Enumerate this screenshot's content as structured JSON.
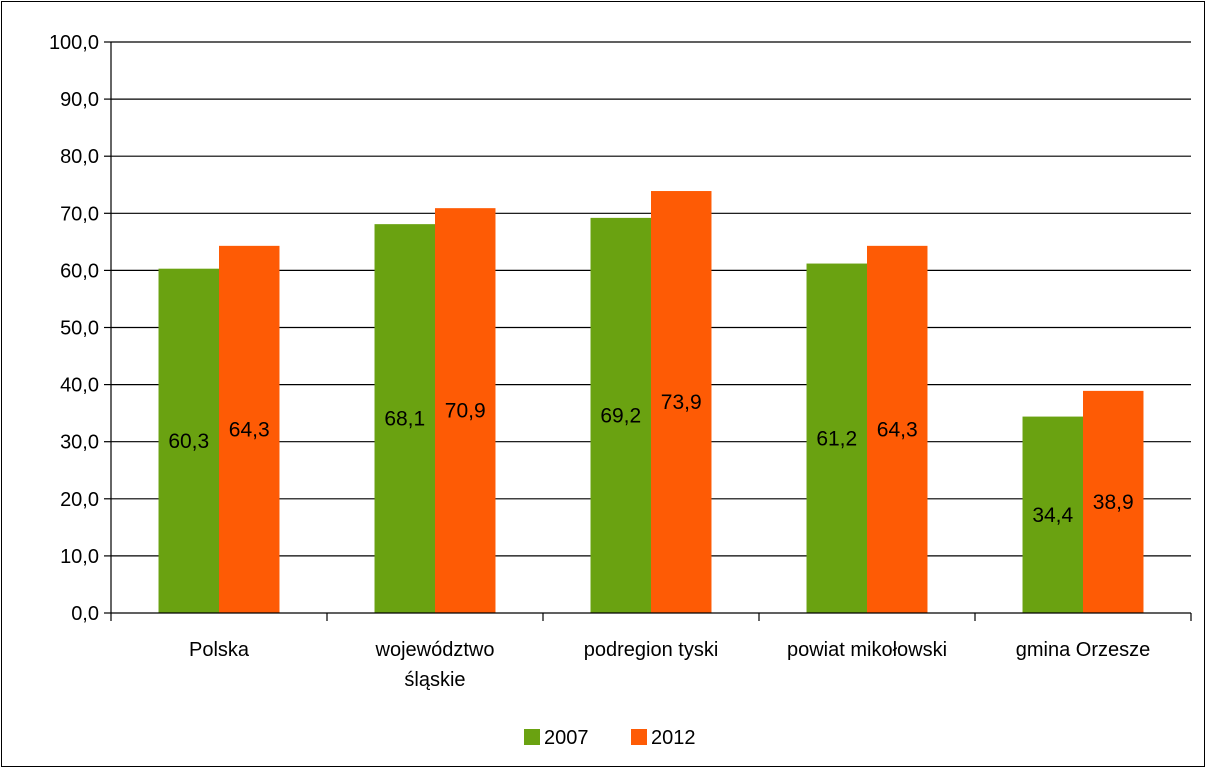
{
  "chart_data": {
    "type": "bar",
    "categories": [
      [
        "Polska"
      ],
      [
        "województwo",
        "śląskie"
      ],
      [
        "podregion tyski"
      ],
      [
        "powiat mikołowski"
      ],
      [
        "gmina Orzesze"
      ]
    ],
    "series": [
      {
        "name": "2007",
        "color": "#6aa211",
        "values": [
          60.3,
          68.1,
          69.2,
          61.2,
          34.4
        ]
      },
      {
        "name": "2012",
        "color": "#fe5b05",
        "values": [
          64.3,
          70.9,
          73.9,
          64.3,
          38.9
        ]
      }
    ],
    "data_labels": [
      [
        "60,3",
        "68,1",
        "69,2",
        "61,2",
        "34,4"
      ],
      [
        "64,3",
        "70,9",
        "73,9",
        "64,3",
        "38,9"
      ]
    ],
    "ylim": [
      0,
      100
    ],
    "yticks": [
      "0,0",
      "10,0",
      "20,0",
      "30,0",
      "40,0",
      "50,0",
      "60,0",
      "70,0",
      "80,0",
      "90,0",
      "100,0"
    ],
    "grid": true,
    "legend_position": "bottom",
    "title": "",
    "xlabel": "",
    "ylabel": ""
  }
}
